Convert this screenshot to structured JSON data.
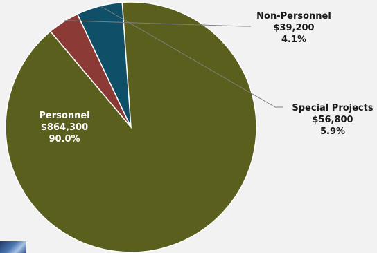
{
  "chart_data": {
    "type": "pie",
    "title": "",
    "slices": [
      {
        "name": "Personnel",
        "value": 864300,
        "value_label": "$864,300",
        "percent_label": "90.0%",
        "color": "#5a5f1e"
      },
      {
        "name": "Non-Personnel",
        "value": 39200,
        "value_label": "$39,200",
        "percent_label": "4.1%",
        "color": "#8b3a36"
      },
      {
        "name": "Special Projects",
        "value": 56800,
        "value_label": "$56,800",
        "percent_label": "5.9%",
        "color": "#0f5068"
      }
    ],
    "legend": "none",
    "data_labels": true,
    "leader_lines": true
  },
  "colors": {
    "background": "#f2f2f2",
    "inside_label_text": "#ffffff",
    "outside_label_text": "#1a1a1a",
    "leader_line": "#7f7f7f"
  }
}
